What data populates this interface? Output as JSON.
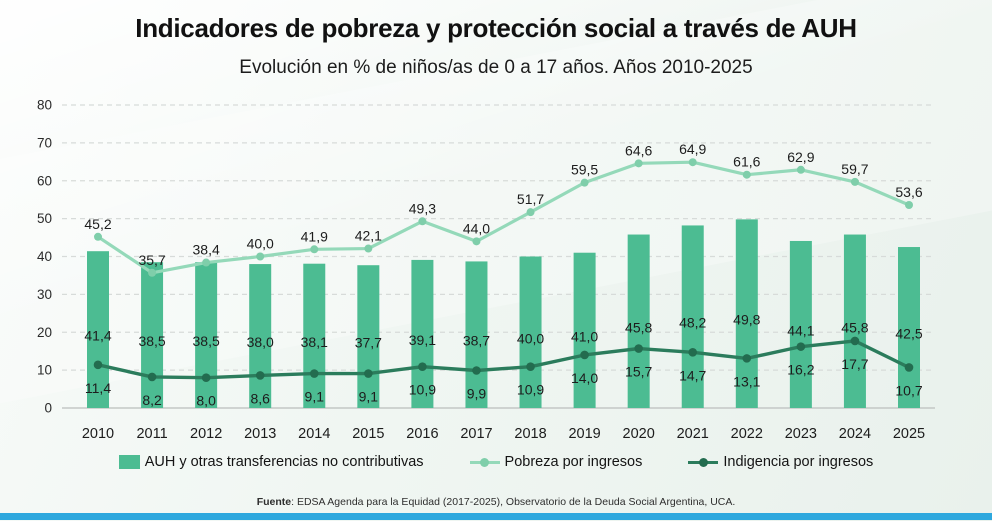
{
  "chart_data": {
    "type": "bar+line",
    "title": "Indicadores de pobreza y protección social a través de AUH",
    "subtitle": "Evolución en % de niños/as de 0 a 17 años. Años 2010-2025",
    "categories": [
      "2010",
      "2011",
      "2012",
      "2013",
      "2014",
      "2015",
      "2016",
      "2017",
      "2018",
      "2019",
      "2020",
      "2021",
      "2022",
      "2023",
      "2024",
      "2025"
    ],
    "series": [
      {
        "name": "AUH y otras transferencias no contributivas",
        "render": "bar",
        "color": "#4CBC92",
        "values": [
          41.4,
          38.5,
          38.5,
          38.0,
          38.1,
          37.7,
          39.1,
          38.7,
          40.0,
          41.0,
          45.8,
          48.2,
          49.8,
          44.1,
          45.8,
          42.5
        ]
      },
      {
        "name": "Pobreza por ingresos",
        "render": "line",
        "color": "#94D9B9",
        "marker_color": "#7FCEAA",
        "values": [
          45.2,
          35.7,
          38.4,
          40.0,
          41.9,
          42.1,
          49.3,
          44.0,
          51.7,
          59.5,
          64.6,
          64.9,
          61.6,
          62.9,
          59.7,
          53.6
        ]
      },
      {
        "name": "Indigencia por ingresos",
        "render": "line",
        "color": "#2B7C5C",
        "marker_color": "#236C4F",
        "values": [
          11.4,
          8.2,
          8.0,
          8.6,
          9.1,
          9.1,
          10.9,
          9.9,
          10.9,
          14.0,
          15.7,
          14.7,
          13.1,
          16.2,
          17.7,
          10.7
        ]
      }
    ],
    "xlabel": "",
    "ylabel": "",
    "ylim": [
      0,
      80
    ],
    "ytick_step": 10,
    "grid": "horizontal-dashed",
    "legend_position": "bottom",
    "value_label_decimal_separator": ","
  },
  "footer": {
    "source_label": "Fuente",
    "source_text": ": EDSA Agenda para la Equidad (2017-2025), Observatorio de la Deuda Social Argentina, UCA."
  },
  "colors": {
    "accent_bar": "#2EA8DE",
    "gridline": "#D7DBD9",
    "axis_line": "#C3C7C5",
    "text": "#1C1C1C"
  }
}
